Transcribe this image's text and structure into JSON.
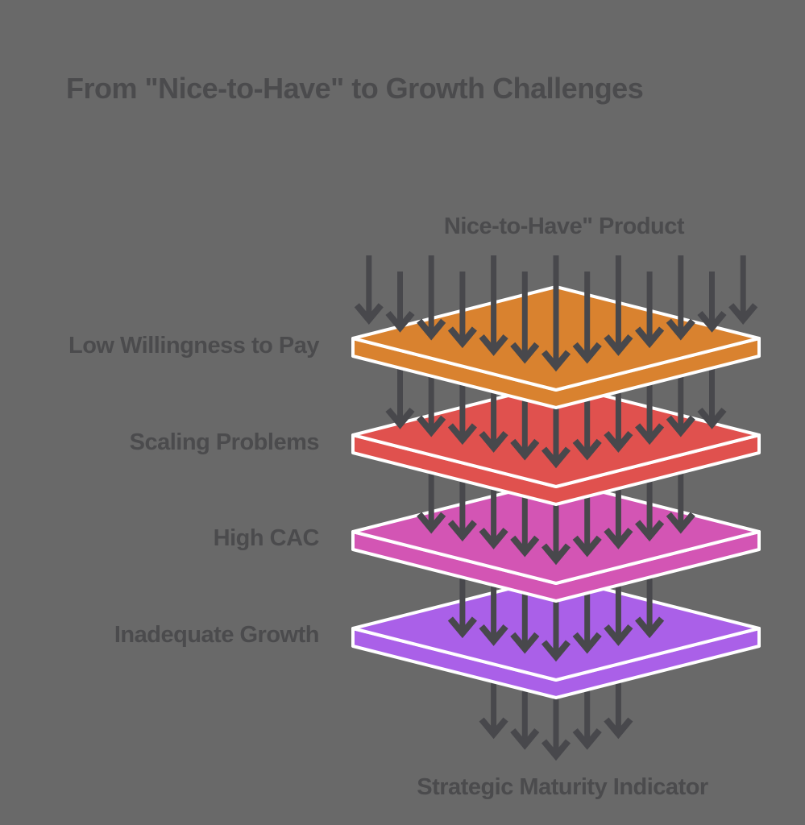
{
  "title": "From \"Nice-to-Have\" to Growth Challenges",
  "diagram": {
    "input_label": "Nice-to-Have\" Product",
    "output_label": "Strategic Maturity Indicator",
    "arrow_color": "#48484c",
    "outline_color": "#ffffff",
    "layers": [
      {
        "label": "Low Willingness to Pay",
        "color": "#d9822f"
      },
      {
        "label": "Scaling Problems",
        "color": "#e0514e"
      },
      {
        "label": "High CAC",
        "color": "#d355b4"
      },
      {
        "label": "Inadequate Growth",
        "color": "#aa60e8"
      }
    ],
    "arrow_counts": {
      "into_layer_1": 13,
      "into_layer_2": 11,
      "into_layer_3": 9,
      "into_layer_4": 7,
      "out_bottom": 5
    }
  },
  "colors": {
    "background": "#696969",
    "text": "#4b4b4d"
  }
}
